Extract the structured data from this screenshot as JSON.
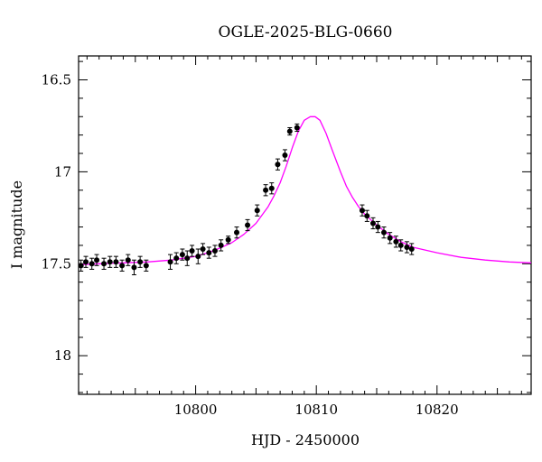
{
  "chart_data": {
    "type": "scatter",
    "title": "OGLE-2025-BLG-0660",
    "xlabel": "HJD - 2450000",
    "ylabel": "I magnitude",
    "xlim": [
      10790.3,
      10827.8
    ],
    "ylim": [
      18.21,
      16.37
    ],
    "y_inverted": true,
    "x_ticks": [
      10800,
      10810,
      10820
    ],
    "y_ticks": [
      16.5,
      17,
      17.5,
      18
    ],
    "y_tick_labels": [
      "16.5",
      "17",
      "17.5",
      "18"
    ],
    "x_tick_labels": [
      "10800",
      "10810",
      "10820"
    ],
    "grid": false,
    "colors": {
      "data": "#000000",
      "model": "#ff00ff"
    },
    "series": [
      {
        "kind": "points_with_errorbars",
        "x": [
          10790.5,
          10790.9,
          10791.4,
          10791.8,
          10792.4,
          10792.9,
          10793.4,
          10793.9,
          10794.4,
          10794.9,
          10795.4,
          10795.9,
          10797.9,
          10798.4,
          10798.9,
          10799.3,
          10799.7,
          10800.2,
          10800.6,
          10801.1,
          10801.6,
          10802.1,
          10802.7,
          10803.4,
          10804.3,
          10805.1,
          10805.8,
          10806.3,
          10806.8,
          10807.4,
          10807.8,
          10808.4,
          10813.8,
          10814.2,
          10814.7,
          10815.1,
          10815.6,
          10816.1,
          10816.6,
          10817.0,
          10817.5,
          10817.9
        ],
        "y": [
          17.51,
          17.49,
          17.5,
          17.48,
          17.5,
          17.49,
          17.49,
          17.51,
          17.48,
          17.52,
          17.49,
          17.51,
          17.49,
          17.47,
          17.45,
          17.47,
          17.43,
          17.46,
          17.42,
          17.44,
          17.43,
          17.4,
          17.37,
          17.33,
          17.29,
          17.21,
          17.1,
          17.09,
          16.96,
          16.91,
          16.78,
          16.76,
          17.21,
          17.24,
          17.28,
          17.3,
          17.33,
          17.36,
          17.38,
          17.4,
          17.41,
          17.42
        ],
        "yerr": [
          0.03,
          0.03,
          0.03,
          0.03,
          0.03,
          0.03,
          0.03,
          0.03,
          0.03,
          0.04,
          0.03,
          0.03,
          0.04,
          0.03,
          0.03,
          0.04,
          0.03,
          0.04,
          0.03,
          0.03,
          0.03,
          0.03,
          0.02,
          0.03,
          0.03,
          0.03,
          0.03,
          0.03,
          0.03,
          0.03,
          0.02,
          0.02,
          0.03,
          0.03,
          0.03,
          0.03,
          0.03,
          0.03,
          0.03,
          0.03,
          0.03,
          0.03
        ]
      },
      {
        "kind": "model_curve",
        "x": [
          10790.3,
          10792,
          10794,
          10796,
          10798,
          10800,
          10801,
          10802,
          10803,
          10804,
          10805,
          10806,
          10806.5,
          10807,
          10807.5,
          10808,
          10808.5,
          10809,
          10809.5,
          10809.9,
          10810.3,
          10810.8,
          10811.3,
          10812,
          10812.5,
          10813,
          10813.5,
          10814,
          10815,
          10816,
          10817,
          10818,
          10820,
          10822,
          10824,
          10826,
          10827.8
        ],
        "y": [
          17.505,
          17.5,
          17.495,
          17.49,
          17.48,
          17.46,
          17.44,
          17.415,
          17.385,
          17.34,
          17.28,
          17.19,
          17.13,
          17.06,
          16.97,
          16.87,
          16.78,
          16.72,
          16.7,
          16.7,
          16.72,
          16.79,
          16.88,
          17.0,
          17.08,
          17.14,
          17.19,
          17.23,
          17.29,
          17.34,
          17.38,
          17.41,
          17.44,
          17.465,
          17.48,
          17.49,
          17.495
        ]
      }
    ]
  }
}
